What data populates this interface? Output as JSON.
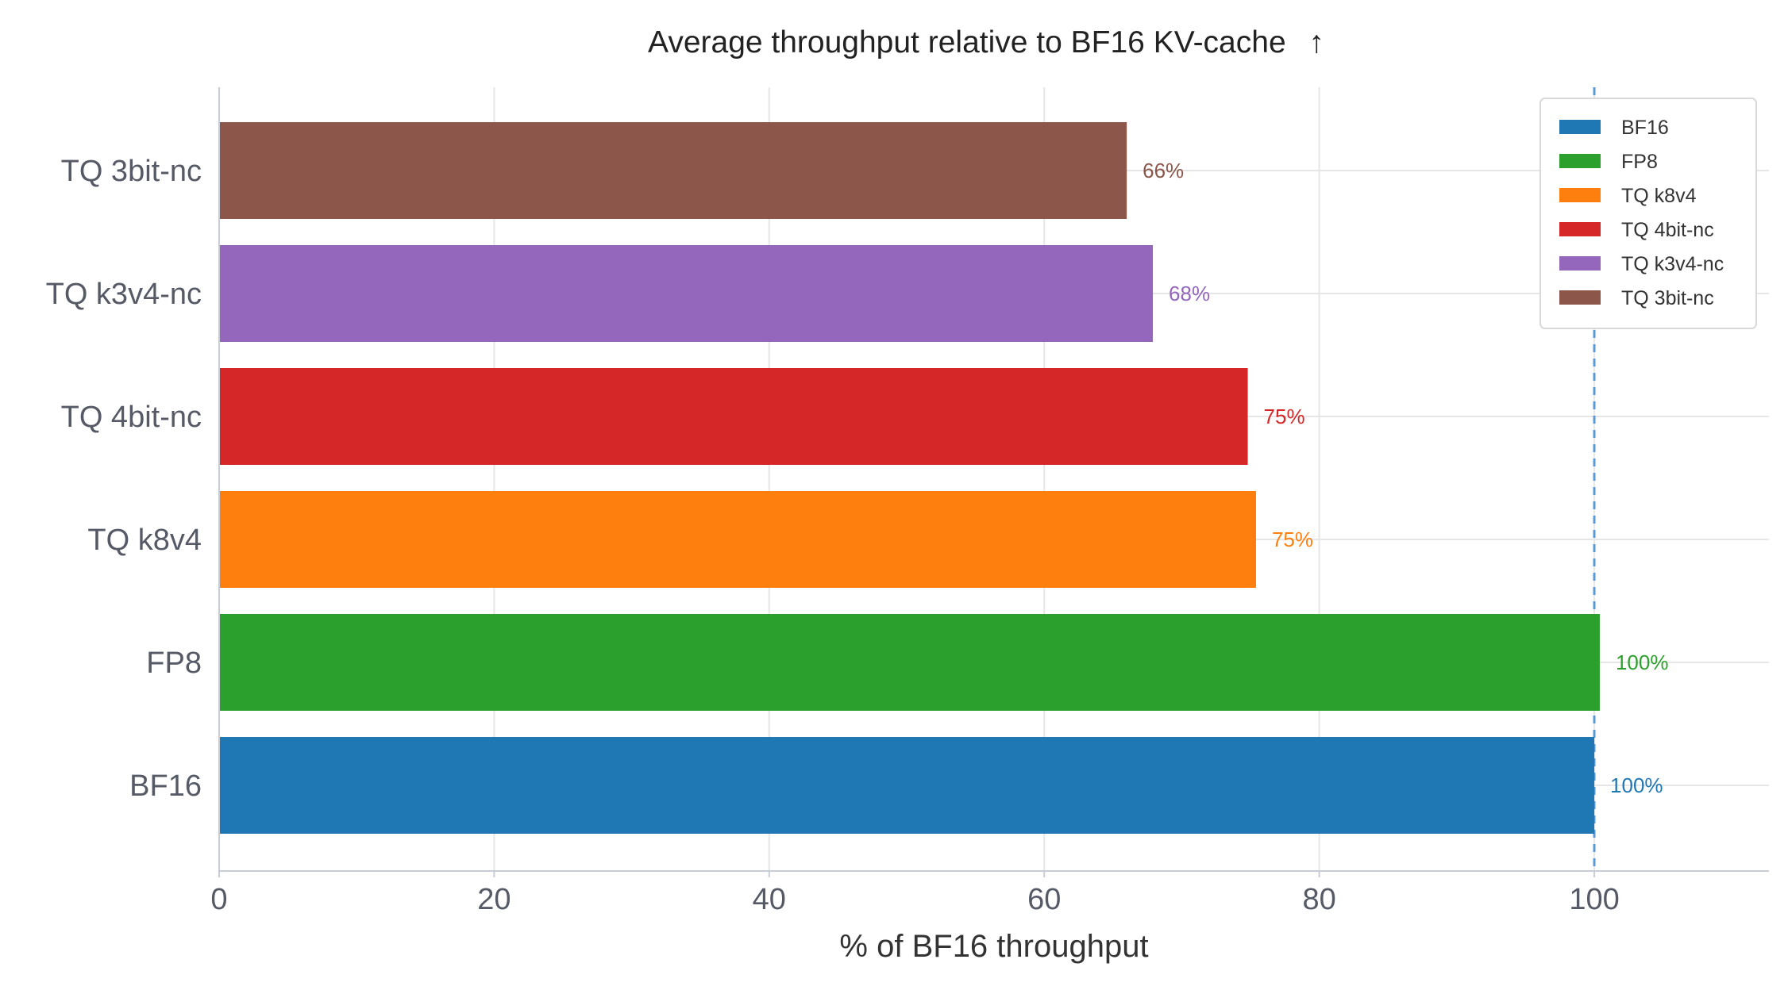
{
  "chart_data": {
    "type": "bar",
    "orientation": "horizontal",
    "title": "Average throughput relative to BF16 KV-cache",
    "title_arrow": "↑",
    "xlabel": "% of BF16 throughput",
    "ylabel": "",
    "xlim": [
      0,
      112.7
    ],
    "xticks": [
      0,
      20,
      40,
      60,
      80,
      100
    ],
    "grid": true,
    "legend_position": "top-right",
    "reference_line": {
      "value": 100,
      "style": "dashed",
      "color": "#5b9bd5"
    },
    "categories": [
      "BF16",
      "FP8",
      "TQ k8v4",
      "TQ 4bit-nc",
      "TQ k3v4-nc",
      "TQ 3bit-nc"
    ],
    "values": [
      100,
      100.4,
      75.4,
      74.8,
      67.9,
      66.0
    ],
    "labels": [
      "100%",
      "100%",
      "75%",
      "75%",
      "68%",
      "66%"
    ],
    "colors": [
      "#1f77b4",
      "#2ca02c",
      "#ff7f0e",
      "#d62728",
      "#9467bd",
      "#8c564b"
    ]
  }
}
